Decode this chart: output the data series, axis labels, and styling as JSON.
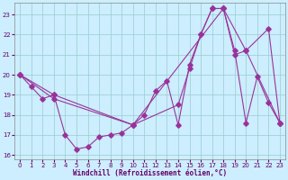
{
  "bg_color": "#cceeff",
  "line_color": "#993399",
  "grid_color": "#99cccc",
  "xlabel": "Windchill (Refroidissement éolien,°C)",
  "xlim": [
    -0.5,
    23.5
  ],
  "ylim": [
    15.8,
    23.6
  ],
  "yticks": [
    16,
    17,
    18,
    19,
    20,
    21,
    22,
    23
  ],
  "xticks": [
    0,
    1,
    2,
    3,
    4,
    5,
    6,
    7,
    8,
    9,
    10,
    11,
    12,
    13,
    14,
    15,
    16,
    17,
    18,
    19,
    20,
    21,
    22,
    23
  ],
  "s1_x": [
    0,
    1,
    2,
    3,
    4,
    5,
    6,
    7,
    8,
    9,
    10,
    11,
    12,
    13,
    14,
    15,
    16,
    17,
    18,
    19,
    20,
    21,
    22,
    23
  ],
  "s1_y": [
    20.0,
    19.4,
    18.8,
    19.0,
    17.0,
    16.3,
    16.4,
    16.9,
    17.0,
    17.1,
    17.5,
    18.0,
    19.2,
    19.7,
    17.5,
    20.5,
    22.0,
    23.3,
    23.3,
    21.2,
    17.6,
    19.9,
    18.6,
    17.6
  ],
  "s2_x": [
    0,
    3,
    10,
    18,
    19,
    20,
    22,
    23
  ],
  "s2_y": [
    20.0,
    19.0,
    17.5,
    23.3,
    21.0,
    21.2,
    22.3,
    17.6
  ],
  "s3_x": [
    0,
    3,
    10,
    14,
    15,
    16,
    17,
    18,
    20,
    23
  ],
  "s3_y": [
    20.0,
    18.8,
    17.5,
    18.5,
    20.3,
    22.0,
    23.3,
    23.3,
    21.2,
    17.6
  ]
}
